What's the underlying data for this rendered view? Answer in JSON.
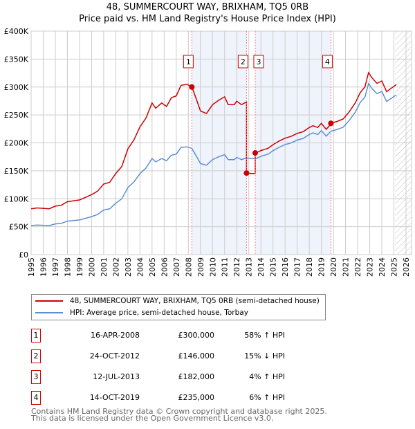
{
  "chart_data": {
    "type": "line",
    "title": "48, SUMMERCOURT WAY, BRIXHAM, TQ5 0RB",
    "subtitle": "Price paid vs. HM Land Registry's House Price Index (HPI)",
    "xlim": [
      1995,
      2026
    ],
    "ylim": [
      0,
      400000
    ],
    "y_ticks": [
      {
        "v": 0,
        "label": "£0"
      },
      {
        "v": 50000,
        "label": "£50K"
      },
      {
        "v": 100000,
        "label": "£100K"
      },
      {
        "v": 150000,
        "label": "£150K"
      },
      {
        "v": 200000,
        "label": "£200K"
      },
      {
        "v": 250000,
        "label": "£250K"
      },
      {
        "v": 300000,
        "label": "£300K"
      },
      {
        "v": 350000,
        "label": "£350K"
      },
      {
        "v": 400000,
        "label": "£400K"
      }
    ],
    "x_ticks": [
      "1995",
      "1996",
      "1997",
      "1998",
      "1999",
      "2000",
      "2001",
      "2002",
      "2003",
      "2004",
      "2005",
      "2006",
      "2007",
      "2008",
      "2009",
      "2010",
      "2011",
      "2012",
      "2013",
      "2014",
      "2015",
      "2016",
      "2017",
      "2018",
      "2019",
      "2020",
      "2021",
      "2022",
      "2023",
      "2024",
      "2025",
      "2026"
    ],
    "grid": true,
    "colors": {
      "property": "#cc0000",
      "hpi": "#5b8fd4",
      "shade": "#eef3fc"
    },
    "hpi_series": [
      [
        1995,
        52000
      ],
      [
        1995.5,
        53000
      ],
      [
        1996,
        52500
      ],
      [
        1996.5,
        52000
      ],
      [
        1997,
        55000
      ],
      [
        1997.5,
        56000
      ],
      [
        1998,
        60000
      ],
      [
        1998.5,
        61000
      ],
      [
        1999,
        62000
      ],
      [
        1999.5,
        65000
      ],
      [
        2000,
        68000
      ],
      [
        2000.5,
        72000
      ],
      [
        2001,
        80000
      ],
      [
        2001.5,
        82000
      ],
      [
        2002,
        92000
      ],
      [
        2002.5,
        100000
      ],
      [
        2003,
        120000
      ],
      [
        2003.5,
        130000
      ],
      [
        2004,
        145000
      ],
      [
        2004.5,
        155000
      ],
      [
        2005,
        172000
      ],
      [
        2005.3,
        166000
      ],
      [
        2005.8,
        172000
      ],
      [
        2006.2,
        168000
      ],
      [
        2006.6,
        178000
      ],
      [
        2007,
        180000
      ],
      [
        2007.4,
        192000
      ],
      [
        2007.9,
        193000
      ],
      [
        2008.3,
        190000
      ],
      [
        2008.7,
        175000
      ],
      [
        2009,
        163000
      ],
      [
        2009.5,
        160000
      ],
      [
        2010,
        170000
      ],
      [
        2010.5,
        175000
      ],
      [
        2011,
        179000
      ],
      [
        2011.3,
        170000
      ],
      [
        2011.8,
        170000
      ],
      [
        2012,
        174000
      ],
      [
        2012.4,
        170000
      ],
      [
        2012.8,
        173000
      ],
      [
        2013.2,
        172000
      ],
      [
        2013.6,
        172000
      ],
      [
        2014,
        176000
      ],
      [
        2014.6,
        180000
      ],
      [
        2015,
        186000
      ],
      [
        2015.5,
        192000
      ],
      [
        2016,
        197000
      ],
      [
        2016.5,
        200000
      ],
      [
        2017,
        205000
      ],
      [
        2017.5,
        208000
      ],
      [
        2018,
        215000
      ],
      [
        2018.3,
        218000
      ],
      [
        2018.7,
        215000
      ],
      [
        2019,
        222000
      ],
      [
        2019.4,
        212000
      ],
      [
        2019.8,
        221000
      ],
      [
        2020.3,
        224000
      ],
      [
        2020.8,
        228000
      ],
      [
        2021.3,
        240000
      ],
      [
        2021.8,
        255000
      ],
      [
        2022.2,
        272000
      ],
      [
        2022.6,
        282000
      ],
      [
        2022.9,
        306000
      ],
      [
        2023.2,
        297000
      ],
      [
        2023.6,
        288000
      ],
      [
        2024,
        292000
      ],
      [
        2024.4,
        274000
      ],
      [
        2024.8,
        280000
      ],
      [
        2025.2,
        286000
      ]
    ],
    "sales": [
      {
        "n": "1",
        "x": 2008.29,
        "date": "16-APR-2008",
        "value": 300000,
        "price": "£300,000",
        "pct": "58% ↑ HPI"
      },
      {
        "n": "2",
        "x": 2012.81,
        "date": "24-OCT-2012",
        "value": 146000,
        "price": "£146,000",
        "pct": "15% ↓ HPI"
      },
      {
        "n": "3",
        "x": 2013.53,
        "date": "12-JUL-2013",
        "value": 182000,
        "price": "£182,000",
        "pct": "4% ↑ HPI"
      },
      {
        "n": "4",
        "x": 2019.79,
        "date": "14-OCT-2019",
        "value": 235000,
        "price": "£235,000",
        "pct": "6% ↑ HPI"
      }
    ],
    "hatch_from": 2025.1,
    "legend": {
      "property": "48, SUMMERCOURT WAY, BRIXHAM, TQ5 0RB (semi-detached house)",
      "hpi": "HPI: Average price, semi-detached house, Torbay"
    }
  },
  "footer": {
    "line1": "Contains HM Land Registry data © Crown copyright and database right 2025.",
    "line2": "This data is licensed under the Open Government Licence v3.0."
  }
}
